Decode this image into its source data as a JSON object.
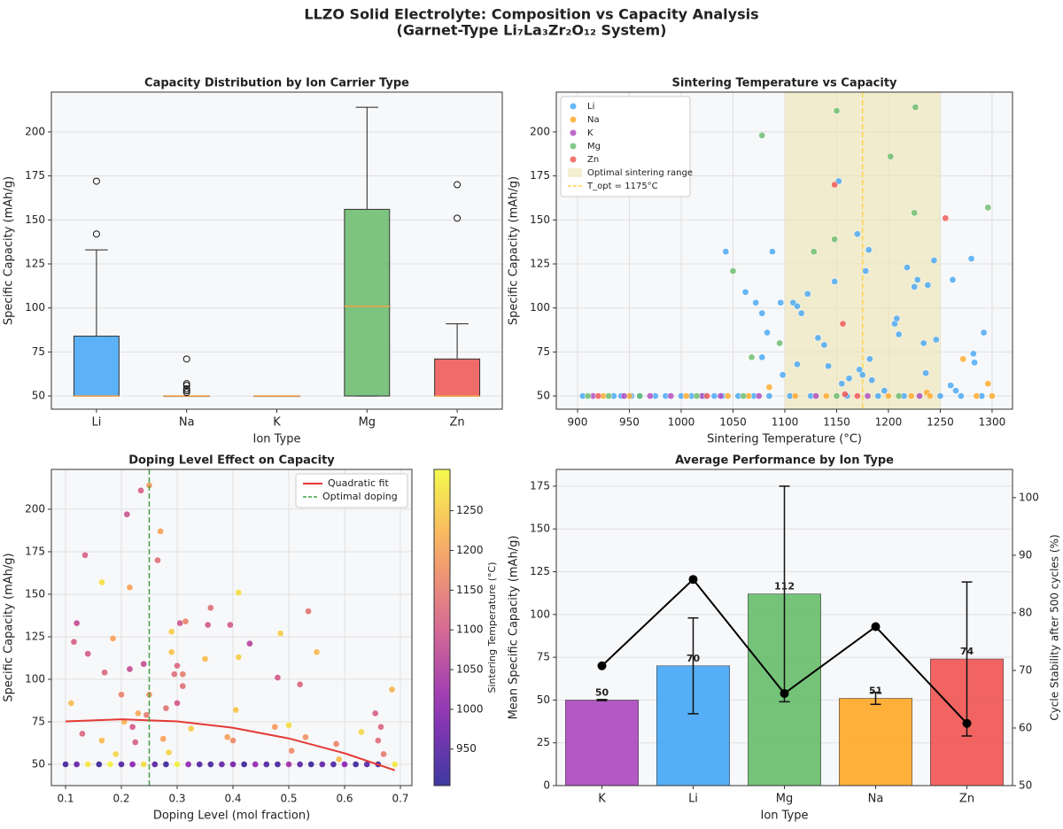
{
  "title": "LLZO Solid Electrolyte: Composition vs Capacity Analysis",
  "subtitle": "(Garnet-Type Li₇La₃Zr₂O₁₂ System)",
  "chart_data": [
    {
      "type": "box",
      "title": "Capacity Distribution by Ion Carrier Type",
      "xlabel": "Ion Type",
      "ylabel": "Specific Capacity (mAh/g)",
      "categories": [
        "Li",
        "Na",
        "K",
        "Mg",
        "Zn"
      ],
      "colors": [
        "#42a5f5",
        "#ffa726",
        "#ab47bc",
        "#66bb6a",
        "#ef5350"
      ],
      "median_color": "#f5a142",
      "boxes": [
        {
          "whislo": 50,
          "q1": 50,
          "med": 50,
          "q3": 84,
          "whishi": 133,
          "fliers": [
            142,
            172
          ]
        },
        {
          "whislo": 50,
          "q1": 50,
          "med": 50,
          "q3": 50,
          "whishi": 50,
          "fliers": [
            52,
            53,
            54,
            56,
            57,
            71
          ]
        },
        {
          "whislo": 50,
          "q1": 50,
          "med": 50,
          "q3": 50,
          "whishi": 50,
          "fliers": []
        },
        {
          "whislo": 50,
          "q1": 50,
          "med": 101,
          "q3": 156,
          "whishi": 214,
          "fliers": []
        },
        {
          "whislo": 50,
          "q1": 50,
          "med": 50,
          "q3": 71,
          "whishi": 91,
          "fliers": [
            151,
            170
          ]
        }
      ],
      "ylim": [
        42.5,
        222.6
      ],
      "yticks": [
        50,
        75,
        100,
        125,
        150,
        175,
        200
      ],
      "grid": true
    },
    {
      "type": "scatter",
      "title": "Sintering Temperature vs Capacity",
      "xlabel": "Sintering Temperature (°C)",
      "ylabel": "Specific Capacity (mAh/g)",
      "series": [
        {
          "name": "Li",
          "color": "#42a5f5",
          "x": [
            1043,
            1062,
            1072,
            1078,
            1083,
            1078,
            1088,
            1096,
            1108,
            1112,
            1116,
            1122,
            1132,
            1138,
            1142,
            1148,
            1152,
            1155,
            1170,
            1172,
            1178,
            1181,
            1182,
            1184,
            1196,
            1206,
            1208,
            1210,
            1218,
            1225,
            1228,
            1234,
            1238,
            1244,
            1246,
            1262,
            1260,
            1265,
            1280,
            1282,
            1283,
            1292,
            1098,
            1112,
            1162,
            1175,
            1236,
            905,
            935,
            942,
            952,
            960,
            975,
            985,
            1000,
            1010,
            1022,
            1032,
            1040,
            1055,
            1070,
            1085,
            1105,
            1125,
            1160,
            1190,
            1215,
            1250,
            1270,
            1290
          ],
          "values": [
            132,
            109,
            103,
            97,
            86,
            72,
            132,
            103,
            103,
            101,
            97,
            108,
            83,
            79,
            67,
            115,
            172,
            57,
            142,
            65,
            121,
            133,
            71,
            59,
            53,
            91,
            94,
            85,
            123,
            112,
            116,
            80,
            113,
            127,
            82,
            116,
            56,
            53,
            128,
            74,
            69,
            86,
            62,
            68,
            60,
            62,
            63,
            50,
            50,
            50,
            50,
            50,
            50,
            50,
            50,
            50,
            50,
            50,
            50,
            50,
            50,
            50,
            50,
            50,
            50,
            50,
            50,
            50,
            50,
            50
          ]
        },
        {
          "name": "Na",
          "color": "#ffa726",
          "x": [
            1085,
            1222,
            1237,
            1272,
            1296,
            925,
            950,
            1005,
            1045,
            1065,
            1110,
            1140,
            1200,
            1240,
            1285,
            1300
          ],
          "values": [
            55,
            50,
            52,
            71,
            57,
            50,
            50,
            50,
            50,
            50,
            50,
            50,
            50,
            50,
            50,
            50
          ]
        },
        {
          "name": "K",
          "color": "#ab47bc",
          "x": [
            915,
            945,
            970,
            990,
            1020,
            1038,
            1075,
            1130,
            1180,
            1230
          ],
          "values": [
            50,
            50,
            50,
            50,
            50,
            50,
            50,
            50,
            50,
            50
          ]
        },
        {
          "name": "Mg",
          "color": "#66bb6a",
          "x": [
            1050,
            1068,
            1078,
            1095,
            1128,
            1150,
            1148,
            1202,
            1225,
            1226,
            1296,
            910,
            930,
            960,
            1015,
            1060,
            1150,
            1210
          ],
          "values": [
            121,
            72,
            198,
            80,
            132,
            212,
            139,
            186,
            154,
            214,
            157,
            50,
            50,
            50,
            50,
            50,
            50,
            50
          ]
        },
        {
          "name": "Zn",
          "color": "#ef5350",
          "x": [
            1148,
            1156,
            1255,
            1158,
            920,
            1025,
            1170
          ],
          "values": [
            170,
            91,
            151,
            51,
            50,
            50,
            50
          ]
        }
      ],
      "span": {
        "name": "Optimal sintering range",
        "range": [
          1100,
          1250
        ],
        "color": "#eee4b0"
      },
      "vline": {
        "name": "T_opt = 1175°C",
        "x": 1175,
        "color": "#ffd54f"
      },
      "legend": "upper left",
      "xlim": [
        879.5,
        1319.7
      ],
      "xticks": [
        900,
        950,
        1000,
        1050,
        1100,
        1150,
        1200,
        1250,
        1300
      ],
      "ylim": [
        42.5,
        222.6
      ],
      "yticks": [
        50,
        75,
        100,
        125,
        150,
        175,
        200
      ],
      "grid": true
    },
    {
      "type": "scatter",
      "title": "Doping Level Effect on Capacity",
      "xlabel": "Doping Level (mol fraction)",
      "ylabel": "Specific Capacity (mAh/g)",
      "series": [
        {
          "x": [
            0.11,
            0.115,
            0.12,
            0.13,
            0.135,
            0.14,
            0.165,
            0.165,
            0.17,
            0.185,
            0.19,
            0.2,
            0.205,
            0.21,
            0.215,
            0.215,
            0.22,
            0.225,
            0.23,
            0.235,
            0.24,
            0.245,
            0.25,
            0.25,
            0.265,
            0.27,
            0.275,
            0.28,
            0.285,
            0.29,
            0.29,
            0.295,
            0.3,
            0.3,
            0.305,
            0.31,
            0.31,
            0.315,
            0.325,
            0.35,
            0.355,
            0.36,
            0.39,
            0.395,
            0.4,
            0.405,
            0.41,
            0.41,
            0.43,
            0.475,
            0.48,
            0.485,
            0.5,
            0.505,
            0.52,
            0.53,
            0.535,
            0.55,
            0.585,
            0.59,
            0.63,
            0.655,
            0.665,
            0.66,
            0.67,
            0.685,
            0.1,
            0.12,
            0.14,
            0.16,
            0.18,
            0.2,
            0.22,
            0.24,
            0.26,
            0.28,
            0.3,
            0.32,
            0.34,
            0.36,
            0.38,
            0.4,
            0.42,
            0.44,
            0.46,
            0.48,
            0.5,
            0.52,
            0.54,
            0.56,
            0.58,
            0.6,
            0.62,
            0.64,
            0.66,
            0.69
          ],
          "values": [
            86,
            122,
            133,
            68,
            173,
            115,
            157,
            64,
            104,
            124,
            56,
            91,
            75,
            197,
            154,
            106,
            72,
            63,
            80,
            211,
            109,
            79,
            214,
            91,
            170,
            187,
            65,
            83,
            57,
            128,
            116,
            103,
            108,
            86,
            133,
            96,
            103,
            134,
            71,
            112,
            132,
            142,
            66,
            132,
            64,
            82,
            151,
            113,
            121,
            72,
            101,
            127,
            73,
            58,
            97,
            66,
            140,
            116,
            62,
            53,
            69,
            80,
            72,
            64,
            56,
            94,
            50,
            50,
            50,
            50,
            50,
            50,
            50,
            50,
            50,
            50,
            50,
            50,
            50,
            50,
            50,
            50,
            50,
            50,
            50,
            50,
            50,
            50,
            50,
            50,
            50,
            50,
            50,
            50,
            50,
            50
          ],
          "c": [
            1230,
            1110,
            1080,
            1120,
            1110,
            1100,
            1270,
            1230,
            1120,
            1200,
            1260,
            1160,
            1220,
            1090,
            1200,
            1080,
            1100,
            1110,
            1210,
            1110,
            1080,
            1150,
            1190,
            1180,
            1130,
            1200,
            1200,
            1140,
            1260,
            1250,
            1240,
            1130,
            1120,
            1100,
            1090,
            1130,
            1150,
            1160,
            1250,
            1230,
            1100,
            1130,
            1200,
            1100,
            1170,
            1240,
            1270,
            1250,
            1060,
            1190,
            1100,
            1250,
            1270,
            1170,
            1120,
            1180,
            1140,
            1230,
            1160,
            1230,
            1260,
            1110,
            1120,
            1130,
            1150,
            1220,
            930,
            960,
            1280,
            920,
            1290,
            940,
            1000,
            1270,
            950,
            920,
            1290,
            1010,
            940,
            930,
            960,
            980,
            920,
            1010,
            940,
            930,
            1030,
            950,
            920,
            960,
            940,
            1000,
            920,
            950,
            930,
            1280
          ]
        }
      ],
      "colormap": "plasma",
      "clim": [
        904,
        1302
      ],
      "cticks": [
        950,
        1000,
        1050,
        1100,
        1150,
        1200,
        1250
      ],
      "clabel": "Sintering Temperature (°C)",
      "fit": {
        "name": "Quadratic fit",
        "color": "#e53935",
        "x": [
          0.1,
          0.2,
          0.3,
          0.4,
          0.5,
          0.6,
          0.69
        ],
        "values": [
          75.25,
          76.5,
          75.25,
          71.5,
          65.25,
          56.5,
          46.5
        ]
      },
      "vline": {
        "name": "Optimal doping",
        "x": 0.25,
        "color": "#43a047"
      },
      "legend": "upper right",
      "xlim": [
        0.0746,
        0.7206
      ],
      "xticks": [
        0.1,
        0.2,
        0.3,
        0.4,
        0.5,
        0.6,
        0.7
      ],
      "ylim": [
        37.5,
        223.4
      ],
      "yticks": [
        50,
        75,
        100,
        125,
        150,
        175,
        200
      ],
      "grid": true
    },
    {
      "type": "bar",
      "title": "Average Performance by Ion Type",
      "xlabel": "Ion Type",
      "ylabel": "Mean Specific Capacity (mAh/g)",
      "y2label": "Cycle Stability after 500 cycles (%)",
      "categories": [
        "K",
        "Li",
        "Mg",
        "Na",
        "Zn"
      ],
      "values": [
        50,
        70,
        112,
        51,
        74
      ],
      "errors": [
        0.3,
        28,
        63,
        3.5,
        45
      ],
      "colors": [
        "#ab47bc",
        "#42a5f5",
        "#66bb6a",
        "#ffa726",
        "#ef5350"
      ],
      "line": {
        "axis": "y2",
        "color": "#000000",
        "values": [
          70.8,
          85.8,
          66,
          77.6,
          60.8
        ]
      },
      "ylim": [
        0,
        184.8
      ],
      "yticks": [
        0,
        25,
        50,
        75,
        100,
        125,
        150,
        175
      ],
      "y2lim": [
        50,
        104.9
      ],
      "y2ticks": [
        50,
        60,
        70,
        80,
        90,
        100
      ],
      "grid": true
    }
  ]
}
